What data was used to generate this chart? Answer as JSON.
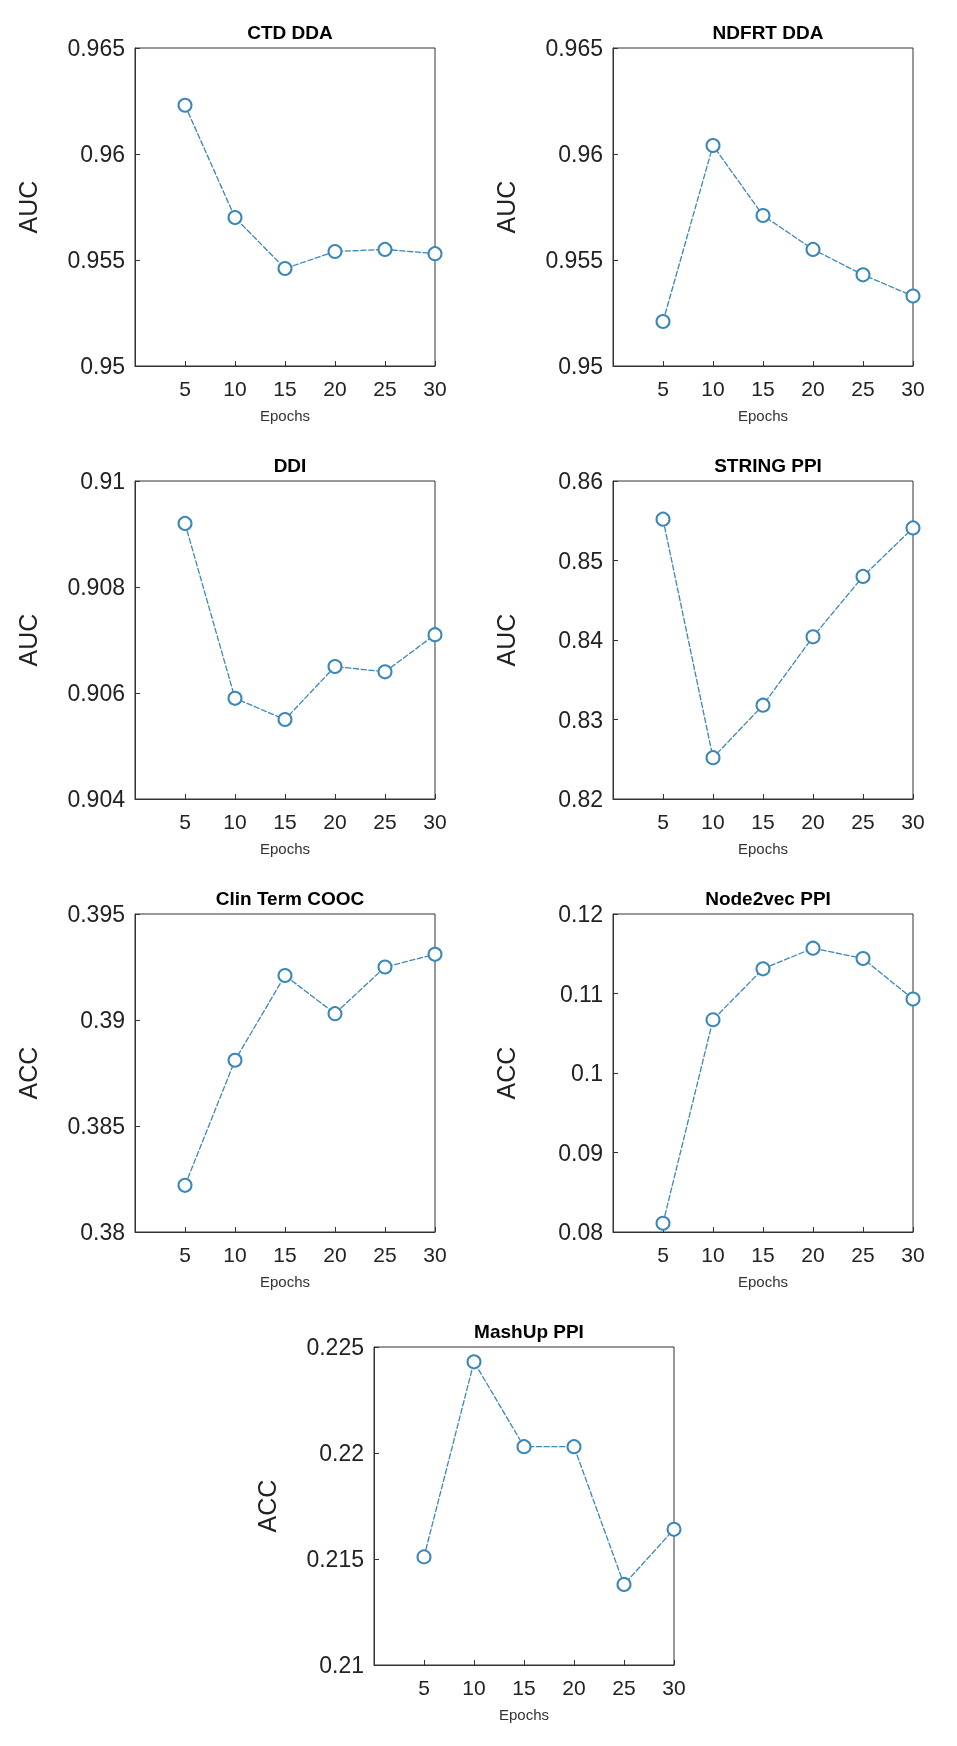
{
  "chart_data": [
    {
      "type": "line",
      "title": "CTD DDA",
      "xlabel": "Epochs",
      "ylabel": "AUC",
      "x": [
        5,
        10,
        15,
        20,
        25,
        30
      ],
      "xlim": [
        0,
        30
      ],
      "xticks": [
        5,
        10,
        15,
        20,
        25,
        30
      ],
      "ylim": [
        0.95,
        0.965
      ],
      "yticks": [
        0.95,
        0.955,
        0.96,
        0.965
      ],
      "marker": "circle",
      "line_style": "dashed",
      "grid": false,
      "series": [
        {
          "color": "#3a87b8",
          "values": [
            0.9623,
            0.957,
            0.9546,
            0.9554,
            0.9555,
            0.9553
          ]
        }
      ]
    },
    {
      "type": "line",
      "title": "NDFRT DDA",
      "xlabel": "Epochs",
      "ylabel": "AUC",
      "x": [
        5,
        10,
        15,
        20,
        25,
        30
      ],
      "xlim": [
        0,
        30
      ],
      "xticks": [
        5,
        10,
        15,
        20,
        25,
        30
      ],
      "ylim": [
        0.95,
        0.965
      ],
      "yticks": [
        0.95,
        0.955,
        0.96,
        0.965
      ],
      "marker": "circle",
      "line_style": "dashed",
      "grid": false,
      "series": [
        {
          "color": "#3a87b8",
          "values": [
            0.9521,
            0.9604,
            0.9571,
            0.9555,
            0.9543,
            0.9533
          ]
        }
      ]
    },
    {
      "type": "line",
      "title": "DDI",
      "xlabel": "Epochs",
      "ylabel": "AUC",
      "x": [
        5,
        10,
        15,
        20,
        25,
        30
      ],
      "xlim": [
        0,
        30
      ],
      "xticks": [
        5,
        10,
        15,
        20,
        25,
        30
      ],
      "ylim": [
        0.904,
        0.91
      ],
      "yticks": [
        0.904,
        0.906,
        0.908,
        0.91
      ],
      "marker": "circle",
      "line_style": "dashed",
      "grid": false,
      "series": [
        {
          "color": "#3a87b8",
          "values": [
            0.9092,
            0.9059,
            0.9055,
            0.9065,
            0.9064,
            0.9071
          ]
        }
      ]
    },
    {
      "type": "line",
      "title": "STRING PPI",
      "xlabel": "Epochs",
      "ylabel": "AUC",
      "x": [
        5,
        10,
        15,
        20,
        25,
        30
      ],
      "xlim": [
        0,
        30
      ],
      "xticks": [
        5,
        10,
        15,
        20,
        25,
        30
      ],
      "ylim": [
        0.82,
        0.86
      ],
      "yticks": [
        0.82,
        0.83,
        0.84,
        0.85,
        0.86
      ],
      "marker": "circle",
      "line_style": "dashed",
      "grid": false,
      "series": [
        {
          "color": "#3a87b8",
          "values": [
            0.8552,
            0.8252,
            0.8318,
            0.8404,
            0.848,
            0.8541
          ]
        }
      ]
    },
    {
      "type": "line",
      "title": "Clin Term COOC",
      "xlabel": "Epochs",
      "ylabel": "ACC",
      "x": [
        5,
        10,
        15,
        20,
        25,
        30
      ],
      "xlim": [
        0,
        30
      ],
      "xticks": [
        5,
        10,
        15,
        20,
        25,
        30
      ],
      "ylim": [
        0.38,
        0.395
      ],
      "yticks": [
        0.38,
        0.385,
        0.39,
        0.395
      ],
      "marker": "circle",
      "line_style": "dashed",
      "grid": false,
      "series": [
        {
          "color": "#3a87b8",
          "values": [
            0.3822,
            0.3881,
            0.3921,
            0.3903,
            0.3925,
            0.3931
          ]
        }
      ]
    },
    {
      "type": "line",
      "title": "Node2vec PPI",
      "xlabel": "Epochs",
      "ylabel": "ACC",
      "x": [
        5,
        10,
        15,
        20,
        25,
        30
      ],
      "xlim": [
        0,
        30
      ],
      "xticks": [
        5,
        10,
        15,
        20,
        25,
        30
      ],
      "ylim": [
        0.08,
        0.12
      ],
      "yticks": [
        0.08,
        0.09,
        0.1,
        0.11,
        0.12
      ],
      "marker": "circle",
      "line_style": "dashed",
      "grid": false,
      "series": [
        {
          "color": "#3a87b8",
          "values": [
            0.0811,
            0.1067,
            0.1131,
            0.1157,
            0.1144,
            0.1093
          ]
        }
      ]
    },
    {
      "type": "line",
      "title": "MashUp PPI",
      "xlabel": "Epochs",
      "ylabel": "ACC",
      "x": [
        5,
        10,
        15,
        20,
        25,
        30
      ],
      "xlim": [
        0,
        30
      ],
      "xticks": [
        5,
        10,
        15,
        20,
        25,
        30
      ],
      "ylim": [
        0.21,
        0.225
      ],
      "yticks": [
        0.21,
        0.215,
        0.22,
        0.225
      ],
      "marker": "circle",
      "line_style": "dashed",
      "grid": false,
      "series": [
        {
          "color": "#3a87b8",
          "values": [
            0.2151,
            0.2243,
            0.2203,
            0.2203,
            0.2138,
            0.2164
          ]
        }
      ]
    }
  ]
}
